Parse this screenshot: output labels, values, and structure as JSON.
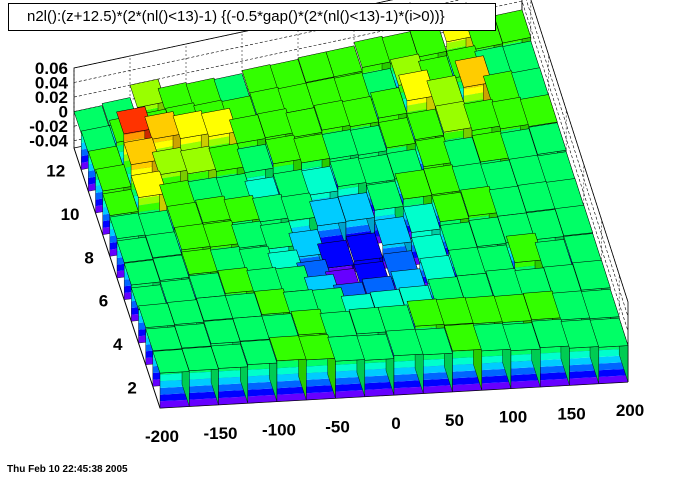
{
  "title": "n2l():(z+12.5)*(2*(nl()<13)-1) {(-0.5*gap()*(2*(nl()<13)-1)*(i>0))}",
  "footer": "Thu Feb 10 22:45:38 2005",
  "chart_data": {
    "type": "lego3d",
    "title": "n2l():(z+12.5)*(2*(nl()<13)-1) {(-0.5*gap()*(2*(nl()<13)-1)*(i>0))}",
    "x_range": [
      -200,
      200
    ],
    "x_ticks": [
      "-200",
      "-150",
      "-100",
      "-50",
      "0",
      "50",
      "100",
      "150",
      "200"
    ],
    "y_range": [
      1,
      13
    ],
    "y_ticks": [
      "2",
      "4",
      "6",
      "8",
      "10",
      "12"
    ],
    "z_range": [
      -0.05,
      0.06
    ],
    "z_ticks": [
      "0.06",
      "0.04",
      "0.02",
      "0",
      "-0.02",
      "-0.04"
    ],
    "palette": [
      "#6600ff",
      "#0000ff",
      "#0066ff",
      "#00ccff",
      "#00ffcc",
      "#00ff66",
      "#33ff00",
      "#99ff00",
      "#ffff00",
      "#ffcc00",
      "#ff9900",
      "#ff3300"
    ],
    "grid": true,
    "nx": 16,
    "ny": 12,
    "values": [
      [
        -0.002,
        -0.001,
        0.0,
        0.003,
        0.006,
        0.005,
        0.001,
        0.0,
        0.004,
        0.003,
        0.006,
        0.004,
        0.002,
        0.004,
        0.001,
        0.0
      ],
      [
        -0.001,
        0.0,
        0.003,
        0.004,
        0.004,
        0.007,
        0.001,
        0.003,
        0.003,
        0.008,
        0.007,
        0.006,
        0.005,
        0.006,
        0.003,
        0.002
      ],
      [
        0.001,
        0.002,
        0.004,
        0.004,
        0.006,
        0.001,
        0.0,
        -0.012,
        -0.01,
        -0.008,
        0.0,
        0.001,
        0.004,
        0.001,
        0.002,
        0.004
      ],
      [
        -0.004,
        0.0,
        0.004,
        0.007,
        0.003,
        0.001,
        -0.015,
        -0.03,
        -0.026,
        -0.02,
        -0.006,
        0.001,
        0.0,
        0.012,
        -0.001,
        0.003
      ],
      [
        0.0,
        0.002,
        0.006,
        0.004,
        0.0,
        -0.01,
        -0.028,
        -0.045,
        -0.04,
        -0.03,
        -0.012,
        0.0,
        0.002,
        0.003,
        0.003,
        0.004
      ],
      [
        0.001,
        0.003,
        0.009,
        0.008,
        0.002,
        -0.004,
        -0.02,
        -0.04,
        -0.035,
        -0.018,
        -0.005,
        0.005,
        0.008,
        0.003,
        0.004,
        0.003
      ],
      [
        0.004,
        0.002,
        0.007,
        0.01,
        0.005,
        0.001,
        -0.003,
        -0.015,
        -0.014,
        -0.004,
        0.006,
        0.007,
        0.004,
        0.002,
        0.003,
        0.002
      ],
      [
        0.006,
        0.025,
        0.006,
        0.004,
        0.003,
        -0.008,
        -0.004,
        -0.006,
        0.0,
        -0.002,
        -0.001,
        0.01,
        0.003,
        0.005,
        0.002,
        0.004
      ],
      [
        0.01,
        0.04,
        0.02,
        0.015,
        0.012,
        0.004,
        0.01,
        0.005,
        0.004,
        0.003,
        0.007,
        0.012,
        0.016,
        0.012,
        0.008,
        0.005
      ],
      [
        0.005,
        0.052,
        0.038,
        0.032,
        0.028,
        0.012,
        0.013,
        0.007,
        0.01,
        0.008,
        0.013,
        0.03,
        0.015,
        0.035,
        0.007,
        0.004
      ],
      [
        0.003,
        0.01,
        0.01,
        0.011,
        0.007,
        0.005,
        0.009,
        0.007,
        0.007,
        0.006,
        0.004,
        0.016,
        0.006,
        0.012,
        0.004,
        0.003
      ],
      [
        0.0,
        0.003,
        0.02,
        0.007,
        0.005,
        0.003,
        0.007,
        0.006,
        0.008,
        0.008,
        0.013,
        0.011,
        0.012,
        0.025,
        0.007,
        0.008
      ]
    ]
  }
}
